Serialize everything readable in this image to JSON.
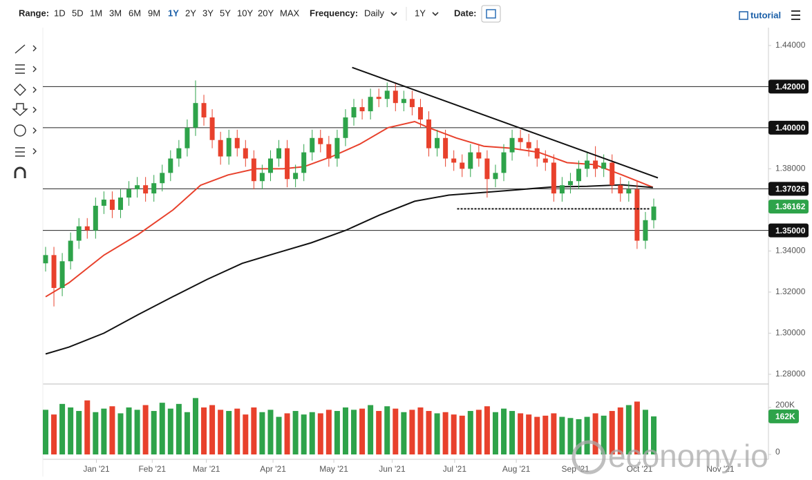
{
  "toolbar": {
    "range_label": "Range:",
    "ranges": [
      "1D",
      "5D",
      "1M",
      "3M",
      "6M",
      "9M",
      "1Y",
      "2Y",
      "3Y",
      "5Y",
      "10Y",
      "20Y",
      "MAX"
    ],
    "active_range": 6,
    "frequency_label": "Frequency:",
    "frequency": "Daily",
    "period": "1Y",
    "date_label": "Date:",
    "tutorial": "tutorial"
  },
  "watermark": "economy.io",
  "chart_data": {
    "type": "candlestick",
    "categories": [
      null,
      null,
      null,
      null,
      null,
      null,
      null,
      null,
      null,
      null,
      null,
      null,
      null,
      null,
      null,
      null,
      null,
      null,
      null,
      null,
      null,
      null,
      null,
      null,
      null,
      null,
      null,
      null,
      null,
      null,
      null,
      null,
      null,
      null,
      null,
      null,
      null,
      null,
      null,
      null,
      null,
      null,
      null,
      null,
      null,
      null,
      null,
      null,
      null,
      null,
      null,
      null,
      null,
      null,
      null,
      null,
      null,
      null,
      null,
      null,
      null,
      null,
      null,
      null,
      null,
      null,
      null,
      null,
      null,
      null,
      null,
      null,
      null,
      null
    ],
    "open": [
      1.334,
      1.338,
      1.322,
      1.335,
      1.345,
      1.352,
      1.35,
      1.362,
      1.365,
      1.36,
      1.366,
      1.37,
      1.372,
      1.368,
      1.373,
      1.378,
      1.385,
      1.39,
      1.4,
      1.412,
      1.405,
      1.394,
      1.386,
      1.395,
      1.39,
      1.385,
      1.374,
      1.378,
      1.385,
      1.39,
      1.375,
      1.378,
      1.388,
      1.395,
      1.392,
      1.385,
      1.395,
      1.405,
      1.41,
      1.408,
      1.415,
      1.414,
      1.418,
      1.412,
      1.414,
      1.41,
      1.404,
      1.39,
      1.395,
      1.385,
      1.383,
      1.38,
      1.388,
      1.385,
      1.375,
      1.378,
      1.388,
      1.395,
      1.393,
      1.39,
      1.385,
      1.383,
      1.368,
      1.372,
      1.374,
      1.38,
      1.384,
      1.38,
      1.383,
      1.372,
      1.368,
      1.37,
      1.345,
      1.355
    ],
    "high": [
      1.342,
      1.342,
      1.339,
      1.349,
      1.356,
      1.356,
      1.366,
      1.369,
      1.369,
      1.37,
      1.374,
      1.376,
      1.376,
      1.377,
      1.382,
      1.389,
      1.394,
      1.404,
      1.423,
      1.416,
      1.409,
      1.398,
      1.399,
      1.399,
      1.394,
      1.389,
      1.382,
      1.389,
      1.394,
      1.394,
      1.382,
      1.392,
      1.399,
      1.399,
      1.396,
      1.399,
      1.409,
      1.414,
      1.414,
      1.419,
      1.419,
      1.422,
      1.422,
      1.418,
      1.418,
      1.414,
      1.408,
      1.399,
      1.399,
      1.389,
      1.387,
      1.392,
      1.392,
      1.389,
      1.382,
      1.392,
      1.399,
      1.399,
      1.397,
      1.394,
      1.389,
      1.387,
      1.376,
      1.378,
      1.384,
      1.388,
      1.391,
      1.387,
      1.387,
      1.376,
      1.374,
      1.374,
      1.359,
      1.3655
    ],
    "low": [
      1.33,
      1.313,
      1.318,
      1.331,
      1.341,
      1.346,
      1.346,
      1.358,
      1.356,
      1.356,
      1.362,
      1.366,
      1.364,
      1.364,
      1.369,
      1.374,
      1.381,
      1.386,
      1.396,
      1.401,
      1.39,
      1.382,
      1.382,
      1.386,
      1.381,
      1.37,
      1.37,
      1.374,
      1.381,
      1.371,
      1.371,
      1.374,
      1.384,
      1.388,
      1.381,
      1.381,
      1.391,
      1.401,
      1.404,
      1.404,
      1.41,
      1.41,
      1.408,
      1.408,
      1.406,
      1.4,
      1.386,
      1.386,
      1.381,
      1.379,
      1.376,
      1.376,
      1.381,
      1.366,
      1.371,
      1.374,
      1.384,
      1.389,
      1.386,
      1.381,
      1.379,
      1.364,
      1.364,
      1.368,
      1.37,
      1.376,
      1.376,
      1.376,
      1.368,
      1.364,
      1.364,
      1.341,
      1.341,
      1.351
    ],
    "close": [
      1.338,
      1.322,
      1.335,
      1.345,
      1.352,
      1.35,
      1.362,
      1.365,
      1.36,
      1.366,
      1.37,
      1.372,
      1.368,
      1.373,
      1.378,
      1.385,
      1.39,
      1.4,
      1.412,
      1.405,
      1.394,
      1.386,
      1.395,
      1.39,
      1.385,
      1.374,
      1.378,
      1.385,
      1.39,
      1.375,
      1.378,
      1.388,
      1.395,
      1.392,
      1.385,
      1.395,
      1.405,
      1.41,
      1.408,
      1.415,
      1.414,
      1.418,
      1.412,
      1.414,
      1.41,
      1.404,
      1.39,
      1.395,
      1.385,
      1.383,
      1.38,
      1.388,
      1.385,
      1.375,
      1.378,
      1.388,
      1.395,
      1.393,
      1.39,
      1.385,
      1.383,
      1.368,
      1.372,
      1.374,
      1.38,
      1.384,
      1.38,
      1.383,
      1.372,
      1.368,
      1.37,
      1.345,
      1.355,
      1.36162
    ],
    "up_color": "#2ea34a",
    "down_color": "#e8412c",
    "xlim": [
      -0.33,
      86.77
    ],
    "xticks": [
      {
        "value": 6.1,
        "label": "Jan '21"
      },
      {
        "value": 12.8,
        "label": "Feb '21"
      },
      {
        "value": 19.3,
        "label": "Mar '21"
      },
      {
        "value": 27.3,
        "label": "Apr '21"
      },
      {
        "value": 34.6,
        "label": "May '21"
      },
      {
        "value": 41.6,
        "label": "Jun '21"
      },
      {
        "value": 49.1,
        "label": "Jul '21"
      },
      {
        "value": 56.5,
        "label": "Aug '21"
      },
      {
        "value": 63.6,
        "label": "Sep '21"
      },
      {
        "value": 71.3,
        "label": "Oct '21"
      },
      {
        "value": 81.0,
        "label": "Nov '21"
      }
    ],
    "ylim": [
      1.2756,
      1.4487
    ],
    "yticks": [
      {
        "value": 1.28,
        "label": "1.28000"
      },
      {
        "value": 1.3,
        "label": "1.30000"
      },
      {
        "value": 1.32,
        "label": "1.32000"
      },
      {
        "value": 1.34,
        "label": "1.34000"
      },
      {
        "value": 1.38,
        "label": "1.38000"
      },
      {
        "value": 1.44,
        "label": "1.44000"
      }
    ],
    "levels": [
      {
        "value": 1.42,
        "label": "1.42000"
      },
      {
        "value": 1.4,
        "label": "1.40000"
      },
      {
        "value": 1.37026,
        "label": "1.37026"
      },
      {
        "value": 1.35,
        "label": "1.35000"
      }
    ],
    "last_price": {
      "value": 1.36162,
      "label": "1.36162"
    },
    "moving_averages": [
      {
        "color": "#e8412c",
        "x": [
          0,
          2.8,
          7.0,
          11.1,
          15.3,
          18.6,
          21.9,
          25.2,
          28.5,
          31.0,
          34.4,
          37.7,
          41.1,
          44.3,
          46.0,
          49.3,
          52.6,
          55.9,
          59.2,
          62.6,
          65.9,
          69.2,
          72.9
        ],
        "values": [
          1.3177,
          1.3245,
          1.338,
          1.348,
          1.36,
          1.372,
          1.377,
          1.38,
          1.38,
          1.381,
          1.386,
          1.392,
          1.4,
          1.403,
          1.4,
          1.395,
          1.391,
          1.39,
          1.388,
          1.383,
          1.382,
          1.377,
          1.371
        ]
      },
      {
        "color": "#111111",
        "x": [
          0,
          2.8,
          7.0,
          11.1,
          15.3,
          19.4,
          23.6,
          27.7,
          31.9,
          36.0,
          40.1,
          44.3,
          48.4,
          52.6,
          56.7,
          60.9,
          65.0,
          69.2,
          72.9
        ],
        "values": [
          1.2899,
          1.2932,
          1.3,
          1.309,
          1.3178,
          1.3262,
          1.334,
          1.339,
          1.344,
          1.35,
          1.3575,
          1.3642,
          1.3672,
          1.3685,
          1.3698,
          1.3712,
          1.3715,
          1.3722,
          1.3709
        ]
      }
    ],
    "trendline": {
      "x": [
        36.8,
        73.5
      ],
      "values": [
        1.4293,
        1.3756
      ]
    },
    "support_line": {
      "x": [
        49.4,
        72.5
      ],
      "values": [
        1.3605,
        1.3605
      ]
    },
    "volume": {
      "values": [
        190000,
        170000,
        215000,
        200000,
        185000,
        230000,
        180000,
        195000,
        205000,
        175000,
        200000,
        190000,
        210000,
        185000,
        220000,
        195000,
        215000,
        180000,
        240000,
        200000,
        210000,
        190000,
        185000,
        195000,
        170000,
        200000,
        180000,
        190000,
        160000,
        175000,
        185000,
        170000,
        180000,
        175000,
        190000,
        185000,
        200000,
        190000,
        195000,
        210000,
        185000,
        205000,
        195000,
        180000,
        190000,
        200000,
        185000,
        175000,
        180000,
        170000,
        165000,
        185000,
        190000,
        205000,
        180000,
        195000,
        185000,
        175000,
        170000,
        160000,
        165000,
        175000,
        160000,
        155000,
        150000,
        160000,
        175000,
        165000,
        185000,
        200000,
        210000,
        225000,
        190000,
        162000
      ],
      "ylim": [
        0,
        288000
      ],
      "yticks": [
        0,
        {
          "value": 200000,
          "label": "200K"
        }
      ],
      "last_label": "162K"
    }
  }
}
